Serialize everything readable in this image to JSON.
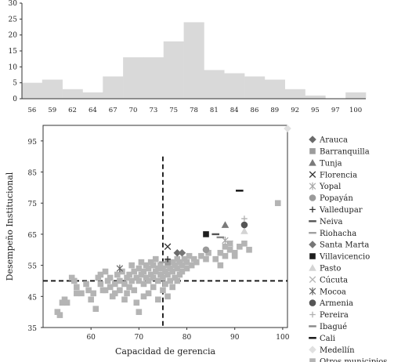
{
  "chart_data": [
    {
      "type": "bar",
      "title": "",
      "xlabel": "",
      "ylabel": "",
      "ylim": [
        0,
        30
      ],
      "yticks": [
        0,
        5,
        10,
        15,
        20,
        25,
        30
      ],
      "tick_labels": [
        "56",
        "59",
        "62",
        "64",
        "67",
        "70",
        "73",
        "75",
        "78",
        "81",
        "84",
        "86",
        "89",
        "92",
        "95",
        "97",
        "100"
      ],
      "values": [
        5,
        6,
        3,
        2,
        7,
        13,
        13,
        18,
        24,
        9,
        8,
        7,
        6,
        3,
        1,
        0,
        2
      ],
      "color": "#d9d9d9",
      "grid": false
    },
    {
      "type": "scatter",
      "xlabel": "Capacidad de gerencia",
      "ylabel": "Desempeño Institucional",
      "xlim": [
        50,
        101
      ],
      "ylim": [
        35,
        100
      ],
      "xticks": [
        50,
        60,
        70,
        80,
        90,
        100
      ],
      "yticks": [
        35,
        45,
        55,
        65,
        75,
        85,
        95
      ],
      "reference_lines": {
        "x": 75,
        "y": 50
      },
      "legend_position": "right",
      "series": [
        {
          "name": "Arauca",
          "marker": "diamond",
          "color": "#6b6b6b",
          "points": [
            [
              78,
              59
            ]
          ]
        },
        {
          "name": "Barranquilla",
          "marker": "square",
          "color": "#9c9c9c",
          "points": [
            [
              76,
              56
            ]
          ]
        },
        {
          "name": "Tunja",
          "marker": "triangle",
          "color": "#7a7a7a",
          "points": [
            [
              88,
              68
            ]
          ]
        },
        {
          "name": "Florencia",
          "marker": "x",
          "color": "#333333",
          "points": [
            [
              76,
              61
            ]
          ]
        },
        {
          "name": "Yopal",
          "marker": "asterisk",
          "color": "#a8a8a8",
          "points": [
            [
              88,
              63
            ]
          ]
        },
        {
          "name": "Popayán",
          "marker": "circle",
          "color": "#9a9a9a",
          "points": [
            [
              84,
              60
            ]
          ]
        },
        {
          "name": "Valledupar",
          "marker": "plus",
          "color": "#333333",
          "points": [
            [
              76,
              57
            ]
          ]
        },
        {
          "name": "Neiva",
          "marker": "dash",
          "color": "#555555",
          "points": [
            [
              86,
              65
            ]
          ]
        },
        {
          "name": "Riohacha",
          "marker": "dash",
          "color": "#a0a0a0",
          "points": [
            [
              75,
              56
            ]
          ]
        },
        {
          "name": "Santa Marta",
          "marker": "diamond",
          "color": "#777777",
          "points": [
            [
              79,
              59
            ]
          ]
        },
        {
          "name": "Villavicencio",
          "marker": "square",
          "color": "#1e1e1e",
          "points": [
            [
              84,
              65
            ]
          ]
        },
        {
          "name": "Pasto",
          "marker": "triangle",
          "color": "#d4d4d4",
          "points": [
            [
              92,
              66
            ]
          ]
        },
        {
          "name": "Cúcuta",
          "marker": "x",
          "color": "#b5b5b5",
          "points": [
            [
              89,
              62
            ]
          ]
        },
        {
          "name": "Mocoa",
          "marker": "asterisk",
          "color": "#666666",
          "points": [
            [
              66,
              54
            ]
          ]
        },
        {
          "name": "Armenia",
          "marker": "circle",
          "color": "#555555",
          "points": [
            [
              92,
              68
            ]
          ]
        },
        {
          "name": "Pereira",
          "marker": "plus",
          "color": "#b0b0b0",
          "points": [
            [
              92,
              70
            ]
          ]
        },
        {
          "name": "Ibagué",
          "marker": "dash",
          "color": "#888888",
          "points": [
            [
              87,
              64
            ]
          ]
        },
        {
          "name": "Cali",
          "marker": "dash",
          "color": "#111111",
          "points": [
            [
              91,
              79
            ]
          ]
        },
        {
          "name": "Medellín",
          "marker": "diamond",
          "color": "#e0e0e0",
          "points": [
            [
              101,
              99
            ]
          ]
        },
        {
          "name": "Otros municipios",
          "marker": "square",
          "color": "#b4b4b4",
          "points": [
            [
              53,
              40
            ],
            [
              53.5,
              39
            ],
            [
              54,
              43
            ],
            [
              54.5,
              44
            ],
            [
              55,
              43
            ],
            [
              56,
              51
            ],
            [
              56.5,
              50
            ],
            [
              57,
              48
            ],
            [
              57,
              46
            ],
            [
              58,
              46
            ],
            [
              59,
              49
            ],
            [
              59.5,
              47
            ],
            [
              60,
              44
            ],
            [
              60.5,
              46
            ],
            [
              61,
              41
            ],
            [
              61.5,
              51
            ],
            [
              62,
              52
            ],
            [
              62,
              49
            ],
            [
              62.5,
              47
            ],
            [
              63,
              53
            ],
            [
              63,
              47
            ],
            [
              63.5,
              50
            ],
            [
              64,
              51
            ],
            [
              64,
              48
            ],
            [
              64.5,
              45
            ],
            [
              65,
              49
            ],
            [
              65,
              46
            ],
            [
              65.5,
              52
            ],
            [
              66,
              50
            ],
            [
              66,
              47
            ],
            [
              66.5,
              53
            ],
            [
              67,
              49
            ],
            [
              67,
              44
            ],
            [
              67.5,
              51
            ],
            [
              67.5,
              46
            ],
            [
              68,
              52
            ],
            [
              68,
              48
            ],
            [
              68.5,
              55
            ],
            [
              68.5,
              50
            ],
            [
              69,
              53
            ],
            [
              69,
              47
            ],
            [
              69.5,
              51
            ],
            [
              69.5,
              43
            ],
            [
              70,
              54
            ],
            [
              70,
              50
            ],
            [
              70,
              40
            ],
            [
              70.5,
              56
            ],
            [
              70.5,
              52
            ],
            [
              71,
              53
            ],
            [
              71,
              49
            ],
            [
              71,
              45
            ],
            [
              71.5,
              55
            ],
            [
              71.5,
              51
            ],
            [
              72,
              54
            ],
            [
              72,
              50
            ],
            [
              72,
              46
            ],
            [
              72.5,
              56
            ],
            [
              72.5,
              52
            ],
            [
              73,
              55
            ],
            [
              73,
              51
            ],
            [
              73,
              48
            ],
            [
              73.5,
              57
            ],
            [
              73.5,
              53
            ],
            [
              74,
              54
            ],
            [
              74,
              50
            ],
            [
              74,
              44
            ],
            [
              74.5,
              55
            ],
            [
              74.5,
              52
            ],
            [
              75,
              54
            ],
            [
              75,
              51
            ],
            [
              75,
              47
            ],
            [
              75.5,
              53
            ],
            [
              75.5,
              49
            ],
            [
              76,
              55
            ],
            [
              76,
              52
            ],
            [
              76,
              45
            ],
            [
              76.5,
              54
            ],
            [
              76.5,
              50
            ],
            [
              77,
              56
            ],
            [
              77,
              53
            ],
            [
              77,
              48
            ],
            [
              77.5,
              55
            ],
            [
              77.5,
              51
            ],
            [
              78,
              57
            ],
            [
              78,
              54
            ],
            [
              78,
              50
            ],
            [
              78.5,
              56
            ],
            [
              78.5,
              52
            ],
            [
              79,
              55
            ],
            [
              79,
              53
            ],
            [
              79.5,
              57
            ],
            [
              80,
              56
            ],
            [
              80,
              54
            ],
            [
              80.5,
              58
            ],
            [
              81,
              55
            ],
            [
              81.5,
              57
            ],
            [
              82,
              56
            ],
            [
              83,
              58
            ],
            [
              84,
              57
            ],
            [
              84.5,
              59
            ],
            [
              86,
              57
            ],
            [
              87,
              59
            ],
            [
              87,
              55
            ],
            [
              88,
              61
            ],
            [
              88,
              58
            ],
            [
              89,
              62
            ],
            [
              89,
              60
            ],
            [
              90,
              59
            ],
            [
              90,
              58
            ],
            [
              91,
              61
            ],
            [
              92,
              62
            ],
            [
              93,
              60
            ],
            [
              99,
              75
            ]
          ]
        }
      ]
    }
  ]
}
